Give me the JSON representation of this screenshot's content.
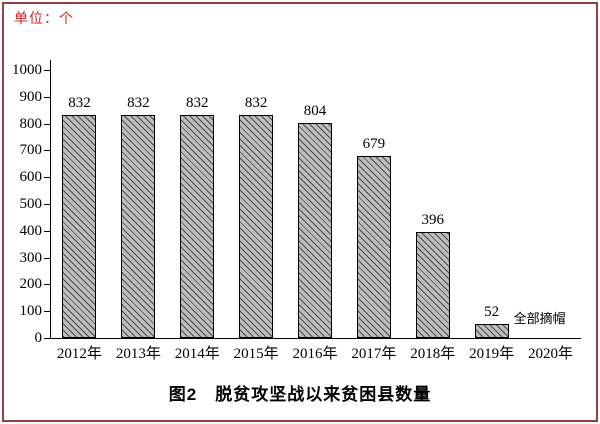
{
  "frame": {
    "border_color": "#8f3f3f",
    "background": "#ffffff"
  },
  "unit_label": "单位：个",
  "caption": "图2　脱贫攻坚战以来贫困县数量",
  "chart_data": {
    "type": "bar",
    "title": "图2 脱贫攻坚战以来贫困县数量",
    "unit_label": "单位：个",
    "categories": [
      "2012年",
      "2013年",
      "2014年",
      "2015年",
      "2016年",
      "2017年",
      "2018年",
      "2019年",
      "2020年"
    ],
    "values": [
      832,
      832,
      832,
      832,
      804,
      679,
      396,
      52,
      0
    ],
    "bar_value_labels": [
      "832",
      "832",
      "832",
      "832",
      "804",
      "679",
      "396",
      "52",
      ""
    ],
    "annotation": {
      "text": "全部摘帽",
      "category": "2019年",
      "placement": "right-of-bar"
    },
    "xlabel": "",
    "ylabel": "",
    "ylim": [
      0,
      1000
    ],
    "ytick_step": 100,
    "ytick_labels": [
      "0",
      "100",
      "200",
      "300",
      "400",
      "500",
      "600",
      "700",
      "800",
      "900",
      "1000"
    ],
    "grid": false,
    "legend": "none",
    "bar_fill": "#bdbdbd",
    "bar_hatch_color": "#4a4a4a",
    "bar_border_color": "#000000",
    "axis_color": "#000000",
    "unit_label_color": "#d42626",
    "text_color": "#000000"
  }
}
